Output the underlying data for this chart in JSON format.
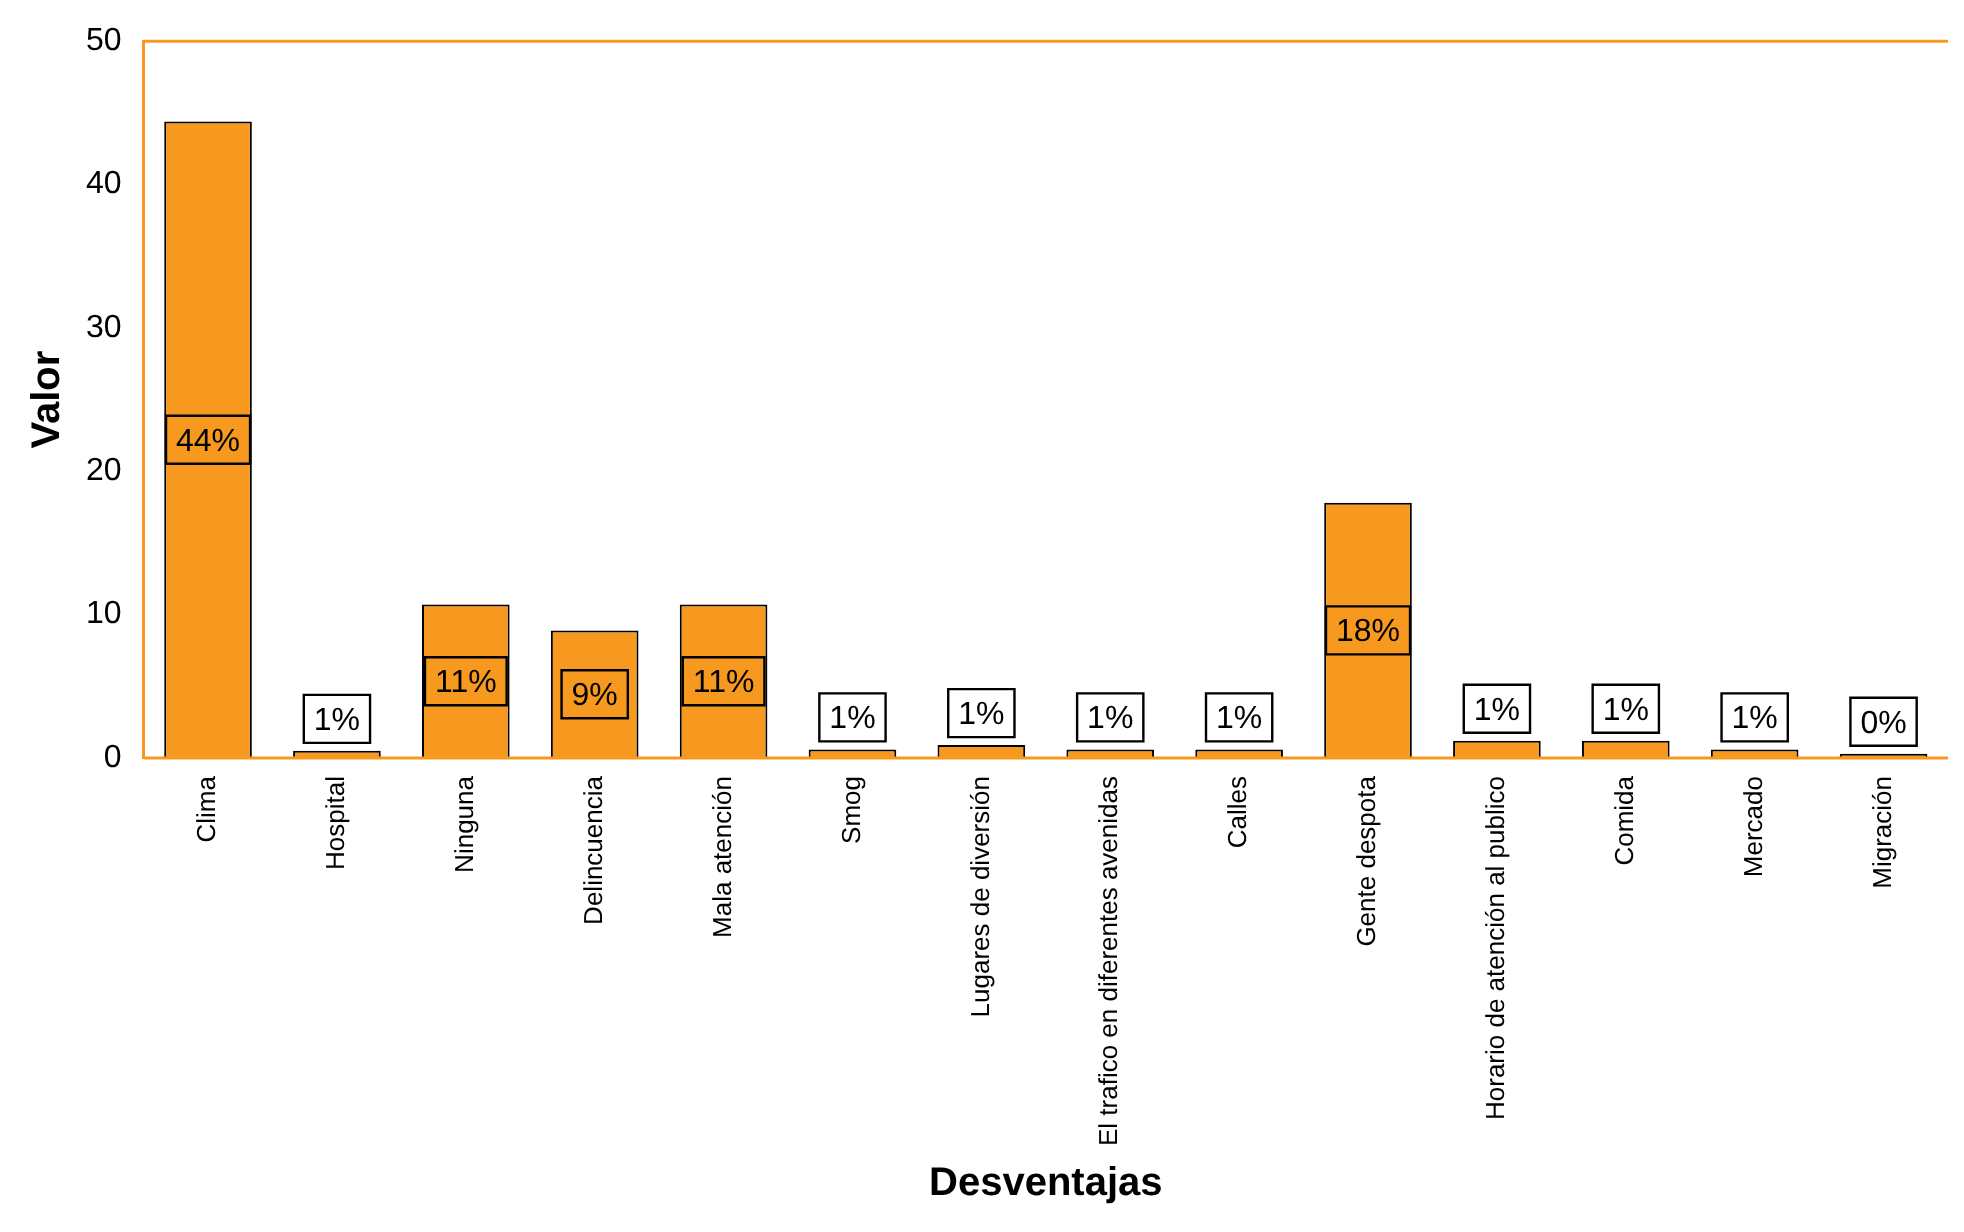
{
  "chart_data": {
    "type": "bar",
    "xlabel": "Desventajas",
    "ylabel": "Valor",
    "categories": [
      "Clima",
      "Hospital",
      "Ninguna",
      "Delincuencia",
      "Mala atención",
      "Smog",
      "Lugares de diversión",
      "El trafico en diferentes avenidas",
      "Calles",
      "Gente despota",
      "Horario de atención al publico",
      "Comida",
      "Mercado",
      "Migración"
    ],
    "values": [
      44.4,
      0.5,
      10.7,
      8.9,
      10.7,
      0.6,
      0.9,
      0.6,
      0.6,
      17.8,
      1.2,
      1.2,
      0.6,
      0.3
    ],
    "value_labels": [
      "44%",
      "1%",
      "11%",
      "9%",
      "11%",
      "1%",
      "1%",
      "1%",
      "1%",
      "18%",
      "1%",
      "1%",
      "1%",
      "0%"
    ],
    "color": "#f7991f",
    "ylim": [
      0,
      50
    ],
    "yticks": [
      0,
      10,
      20,
      30,
      40,
      50
    ],
    "grid": false,
    "legend": false
  }
}
